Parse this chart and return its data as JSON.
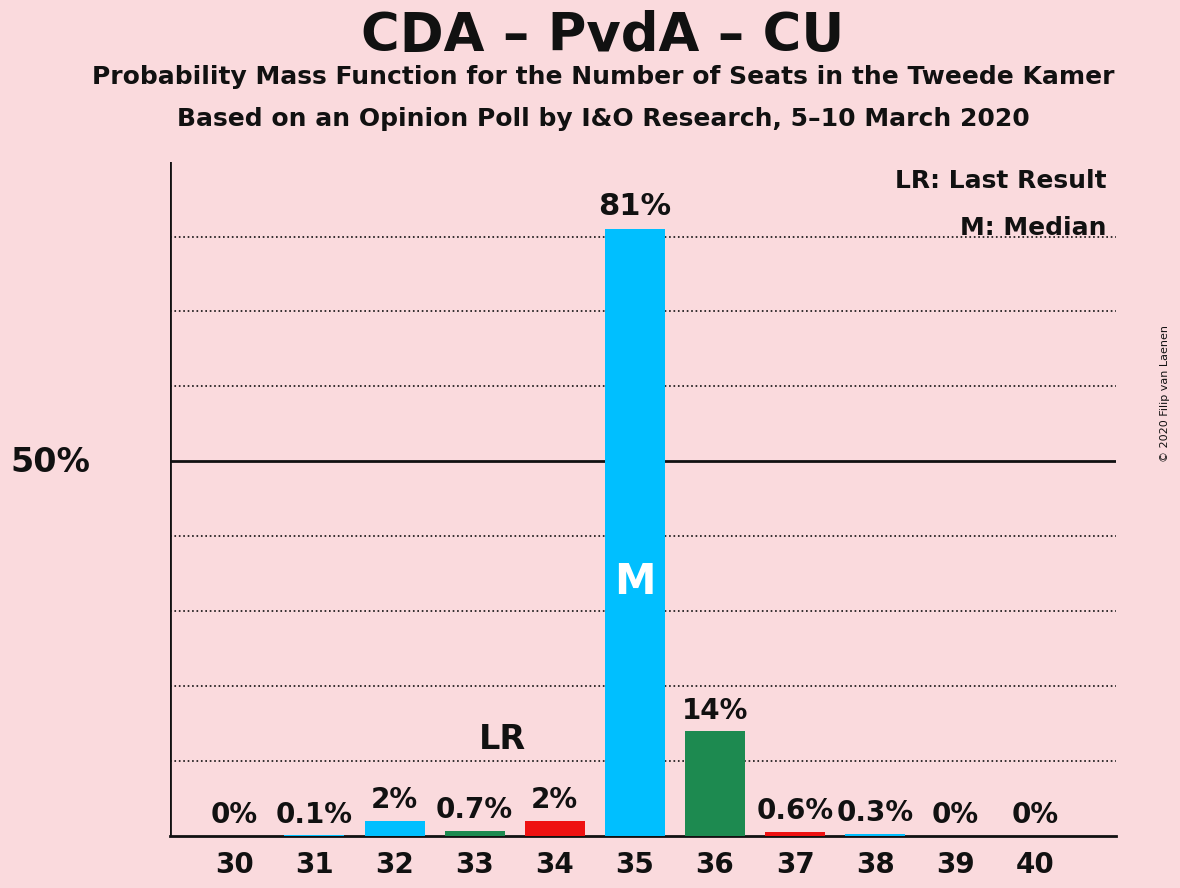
{
  "title": "CDA – PvdA – CU",
  "subtitle1": "Probability Mass Function for the Number of Seats in the Tweede Kamer",
  "subtitle2": "Based on an Opinion Poll by I&O Research, 5–10 March 2020",
  "copyright": "© 2020 Filip van Laenen",
  "seats": [
    30,
    31,
    32,
    33,
    34,
    35,
    36,
    37,
    38,
    39,
    40
  ],
  "probabilities": [
    0.0,
    0.1,
    2.0,
    0.7,
    2.0,
    81.0,
    14.0,
    0.6,
    0.3,
    0.0,
    0.0
  ],
  "bar_colors": [
    "#00BFFF",
    "#00BFFF",
    "#00BFFF",
    "#1D8A50",
    "#EE1111",
    "#00BFFF",
    "#1D8A50",
    "#EE1111",
    "#00BFFF",
    "#00BFFF",
    "#00BFFF"
  ],
  "median_seat": 35,
  "last_result_seat": 34,
  "label_LR": "LR",
  "label_M": "M",
  "legend_LR": "LR: Last Result",
  "legend_M": "M: Median",
  "background_color": "#FADADD",
  "ylim": [
    0,
    90
  ],
  "ylabel_50": "50%",
  "bar_width": 0.75,
  "percentage_labels": [
    "0%",
    "0.1%",
    "2%",
    "0.7%",
    "2%",
    "81%",
    "14%",
    "0.6%",
    "0.3%",
    "0%",
    "0%"
  ],
  "grid_levels": [
    10,
    20,
    30,
    40,
    50,
    60,
    70,
    80
  ],
  "title_fontsize": 38,
  "subtitle_fontsize": 18,
  "label_fontsize": 20,
  "tick_fontsize": 20,
  "legend_fontsize": 18,
  "m_fontsize": 30,
  "lr_fontsize": 24,
  "fifty_fontsize": 24
}
